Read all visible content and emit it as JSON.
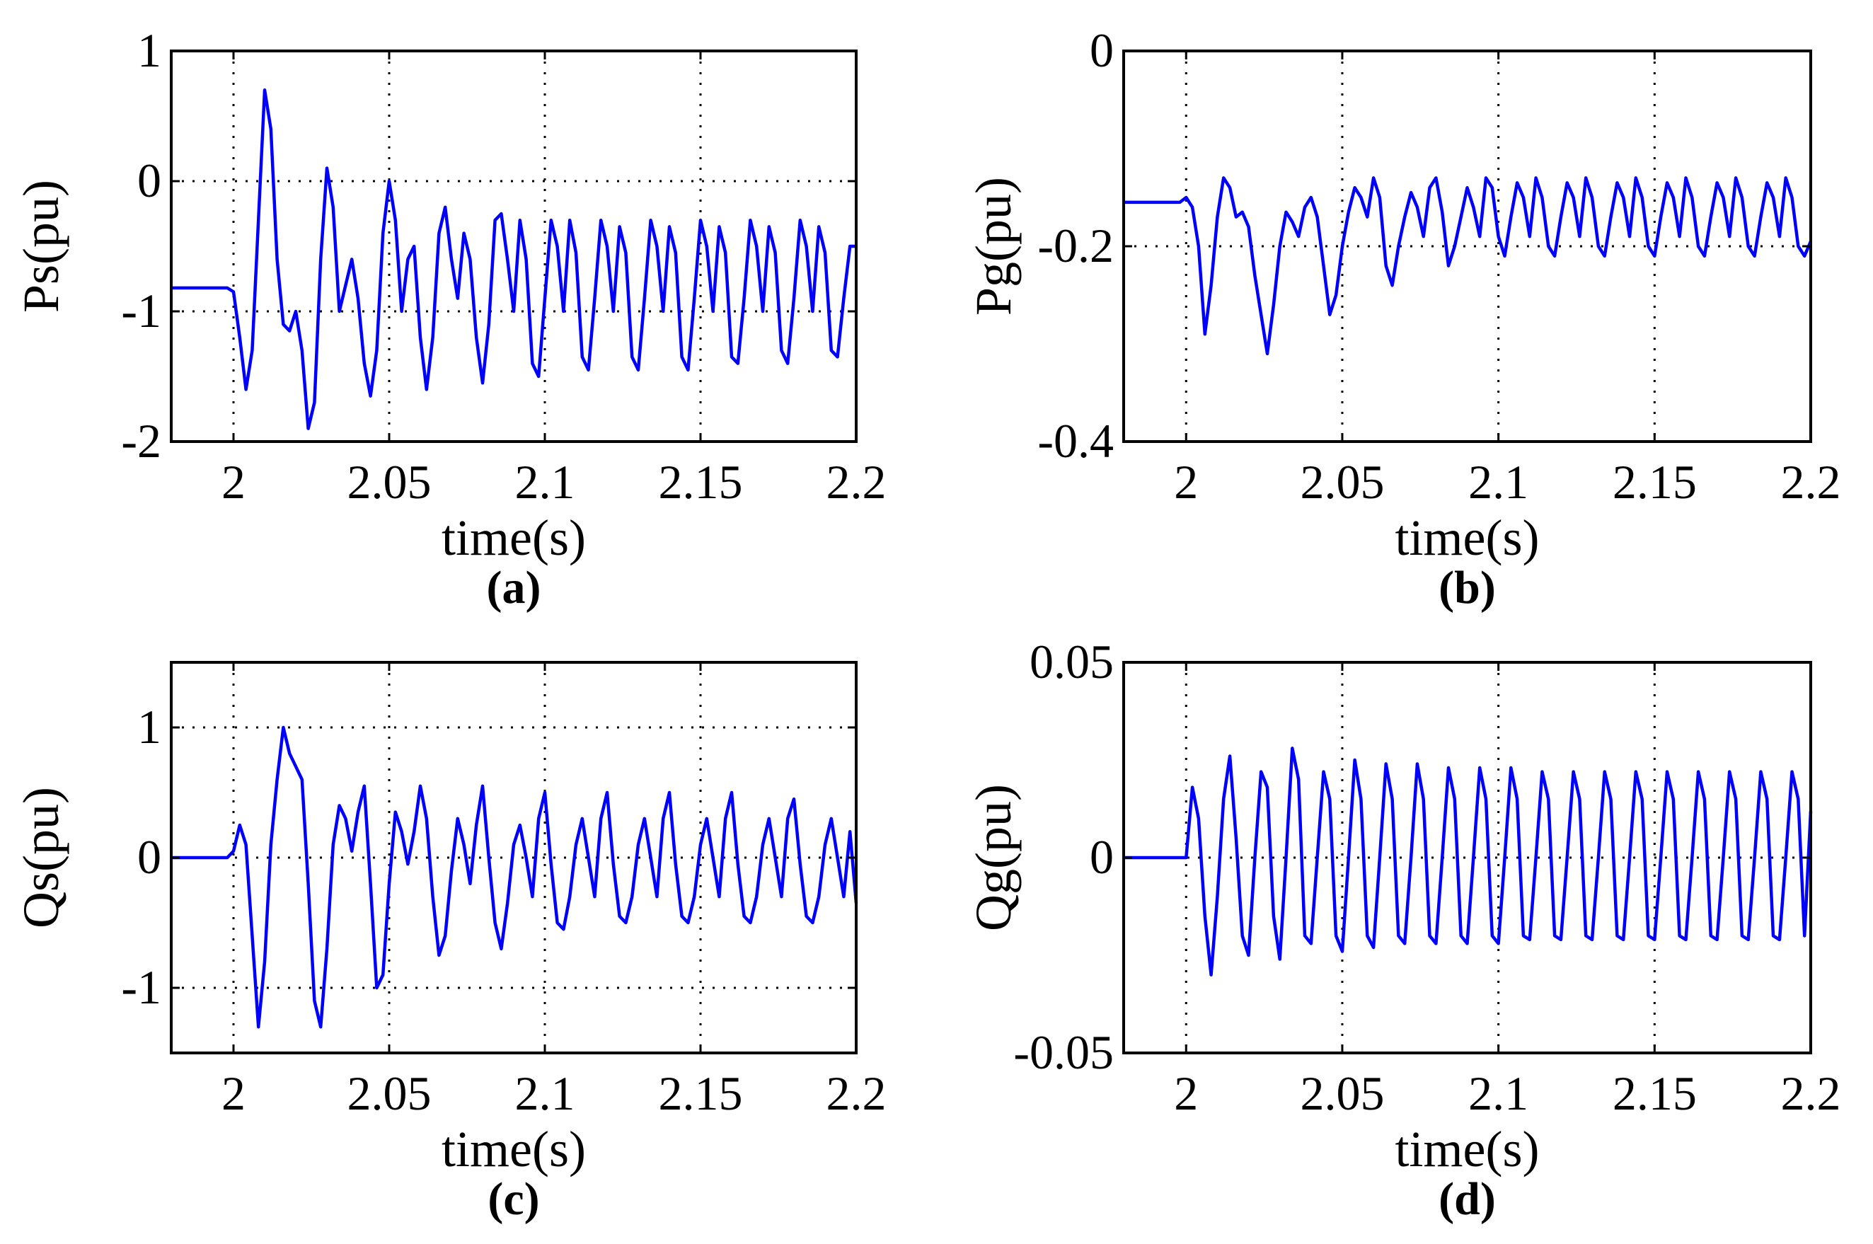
{
  "chart_data": [
    {
      "id": "a",
      "type": "line",
      "caption": "(a)",
      "xlabel": "time(s)",
      "ylabel": "Ps(pu)",
      "xlim": [
        1.98,
        2.2
      ],
      "ylim": [
        -2,
        1
      ],
      "xticks": [
        2,
        2.05,
        2.1,
        2.15,
        2.2
      ],
      "xtick_labels": [
        "2",
        "2.05",
        "2.1",
        "2.15",
        "2.2"
      ],
      "yticks": [
        -2,
        -1,
        0,
        1
      ],
      "ytick_labels": [
        "-2",
        "-1",
        "0",
        "1"
      ],
      "grid": true,
      "series": [
        {
          "name": "Ps",
          "color": "#0000ff",
          "x": [
            1.98,
            1.998,
            2.0,
            2.002,
            2.004,
            2.006,
            2.008,
            2.01,
            2.012,
            2.014,
            2.016,
            2.018,
            2.02,
            2.022,
            2.024,
            2.026,
            2.028,
            2.03,
            2.032,
            2.034,
            2.036,
            2.038,
            2.04,
            2.042,
            2.044,
            2.046,
            2.048,
            2.05,
            2.052,
            2.054,
            2.056,
            2.058,
            2.06,
            2.062,
            2.064,
            2.066,
            2.068,
            2.07,
            2.072,
            2.074,
            2.076,
            2.078,
            2.08,
            2.082,
            2.084,
            2.086,
            2.088,
            2.09,
            2.092,
            2.094,
            2.096,
            2.098,
            2.1,
            2.102,
            2.104,
            2.106,
            2.108,
            2.11,
            2.112,
            2.114,
            2.116,
            2.118,
            2.12,
            2.122,
            2.124,
            2.126,
            2.128,
            2.13,
            2.132,
            2.134,
            2.136,
            2.138,
            2.14,
            2.142,
            2.144,
            2.146,
            2.148,
            2.15,
            2.152,
            2.154,
            2.156,
            2.158,
            2.16,
            2.162,
            2.164,
            2.166,
            2.168,
            2.17,
            2.172,
            2.174,
            2.176,
            2.178,
            2.18,
            2.182,
            2.184,
            2.186,
            2.188,
            2.19,
            2.192,
            2.194,
            2.196,
            2.198,
            2.2
          ],
          "y": [
            -0.82,
            -0.82,
            -0.85,
            -1.2,
            -1.6,
            -1.3,
            -0.3,
            0.7,
            0.4,
            -0.6,
            -1.1,
            -1.15,
            -1.0,
            -1.3,
            -1.9,
            -1.7,
            -0.6,
            0.1,
            -0.2,
            -1.0,
            -0.8,
            -0.6,
            -0.9,
            -1.4,
            -1.65,
            -1.3,
            -0.4,
            0.0,
            -0.3,
            -1.0,
            -0.6,
            -0.5,
            -1.2,
            -1.6,
            -1.2,
            -0.4,
            -0.2,
            -0.6,
            -0.9,
            -0.4,
            -0.6,
            -1.2,
            -1.55,
            -1.1,
            -0.3,
            -0.25,
            -0.6,
            -1.0,
            -0.3,
            -0.6,
            -1.4,
            -1.5,
            -0.9,
            -0.3,
            -0.5,
            -1.0,
            -0.3,
            -0.55,
            -1.35,
            -1.45,
            -0.9,
            -0.3,
            -0.5,
            -1.0,
            -0.35,
            -0.55,
            -1.35,
            -1.45,
            -0.9,
            -0.3,
            -0.5,
            -1.0,
            -0.35,
            -0.55,
            -1.35,
            -1.45,
            -0.9,
            -0.3,
            -0.5,
            -1.0,
            -0.35,
            -0.55,
            -1.35,
            -1.4,
            -0.9,
            -0.3,
            -0.5,
            -1.0,
            -0.35,
            -0.55,
            -1.3,
            -1.4,
            -0.9,
            -0.3,
            -0.5,
            -1.0,
            -0.35,
            -0.55,
            -1.3,
            -1.35,
            -0.9,
            -0.5,
            -0.5
          ]
        }
      ]
    },
    {
      "id": "b",
      "type": "line",
      "caption": "(b)",
      "xlabel": "time(s)",
      "ylabel": "Pg(pu)",
      "xlim": [
        1.98,
        2.2
      ],
      "ylim": [
        -0.4,
        0
      ],
      "xticks": [
        2,
        2.05,
        2.1,
        2.15,
        2.2
      ],
      "xtick_labels": [
        "2",
        "2.05",
        "2.1",
        "2.15",
        "2.2"
      ],
      "yticks": [
        -0.4,
        -0.2,
        0
      ],
      "ytick_labels": [
        "-0.4",
        "-0.2",
        "0"
      ],
      "grid": true,
      "series": [
        {
          "name": "Pg",
          "color": "#0000ff",
          "x": [
            1.98,
            1.998,
            2.0,
            2.002,
            2.004,
            2.006,
            2.008,
            2.01,
            2.012,
            2.014,
            2.016,
            2.018,
            2.02,
            2.022,
            2.024,
            2.026,
            2.028,
            2.03,
            2.032,
            2.034,
            2.036,
            2.038,
            2.04,
            2.042,
            2.044,
            2.046,
            2.048,
            2.05,
            2.052,
            2.054,
            2.056,
            2.058,
            2.06,
            2.062,
            2.064,
            2.066,
            2.068,
            2.07,
            2.072,
            2.074,
            2.076,
            2.078,
            2.08,
            2.082,
            2.084,
            2.086,
            2.088,
            2.09,
            2.092,
            2.094,
            2.096,
            2.098,
            2.1,
            2.102,
            2.104,
            2.106,
            2.108,
            2.11,
            2.112,
            2.114,
            2.116,
            2.118,
            2.12,
            2.122,
            2.124,
            2.126,
            2.128,
            2.13,
            2.132,
            2.134,
            2.136,
            2.138,
            2.14,
            2.142,
            2.144,
            2.146,
            2.148,
            2.15,
            2.152,
            2.154,
            2.156,
            2.158,
            2.16,
            2.162,
            2.164,
            2.166,
            2.168,
            2.17,
            2.172,
            2.174,
            2.176,
            2.178,
            2.18,
            2.182,
            2.184,
            2.186,
            2.188,
            2.19,
            2.192,
            2.194,
            2.196,
            2.198,
            2.2
          ],
          "y": [
            -0.155,
            -0.155,
            -0.15,
            -0.16,
            -0.2,
            -0.29,
            -0.24,
            -0.17,
            -0.13,
            -0.14,
            -0.17,
            -0.165,
            -0.18,
            -0.23,
            -0.27,
            -0.31,
            -0.26,
            -0.2,
            -0.165,
            -0.175,
            -0.19,
            -0.16,
            -0.15,
            -0.17,
            -0.22,
            -0.27,
            -0.25,
            -0.2,
            -0.165,
            -0.14,
            -0.15,
            -0.17,
            -0.13,
            -0.15,
            -0.22,
            -0.24,
            -0.2,
            -0.17,
            -0.145,
            -0.16,
            -0.19,
            -0.14,
            -0.13,
            -0.165,
            -0.22,
            -0.2,
            -0.17,
            -0.14,
            -0.16,
            -0.19,
            -0.13,
            -0.14,
            -0.19,
            -0.21,
            -0.17,
            -0.135,
            -0.15,
            -0.19,
            -0.13,
            -0.15,
            -0.2,
            -0.21,
            -0.17,
            -0.135,
            -0.15,
            -0.19,
            -0.13,
            -0.15,
            -0.2,
            -0.21,
            -0.17,
            -0.135,
            -0.15,
            -0.19,
            -0.13,
            -0.15,
            -0.2,
            -0.21,
            -0.17,
            -0.135,
            -0.15,
            -0.19,
            -0.13,
            -0.15,
            -0.2,
            -0.21,
            -0.17,
            -0.135,
            -0.15,
            -0.19,
            -0.13,
            -0.15,
            -0.2,
            -0.21,
            -0.17,
            -0.135,
            -0.15,
            -0.19,
            -0.13,
            -0.15,
            -0.2,
            -0.21,
            -0.195
          ]
        }
      ]
    },
    {
      "id": "c",
      "type": "line",
      "caption": "(c)",
      "xlabel": "time(s)",
      "ylabel": "Qs(pu)",
      "xlim": [
        1.98,
        2.2
      ],
      "ylim": [
        -1.5,
        1.5
      ],
      "xticks": [
        2,
        2.05,
        2.1,
        2.15,
        2.2
      ],
      "xtick_labels": [
        "2",
        "2.05",
        "2.1",
        "2.15",
        "2.2"
      ],
      "yticks": [
        -1,
        0,
        1
      ],
      "ytick_labels": [
        "-1",
        "0",
        "1"
      ],
      "grid": true,
      "series": [
        {
          "name": "Qs",
          "color": "#0000ff",
          "x": [
            1.98,
            1.998,
            2.0,
            2.002,
            2.004,
            2.006,
            2.008,
            2.01,
            2.012,
            2.014,
            2.016,
            2.018,
            2.02,
            2.022,
            2.024,
            2.026,
            2.028,
            2.03,
            2.032,
            2.034,
            2.036,
            2.038,
            2.04,
            2.042,
            2.044,
            2.046,
            2.048,
            2.05,
            2.052,
            2.054,
            2.056,
            2.058,
            2.06,
            2.062,
            2.064,
            2.066,
            2.068,
            2.07,
            2.072,
            2.074,
            2.076,
            2.078,
            2.08,
            2.082,
            2.084,
            2.086,
            2.088,
            2.09,
            2.092,
            2.094,
            2.096,
            2.098,
            2.1,
            2.102,
            2.104,
            2.106,
            2.108,
            2.11,
            2.112,
            2.114,
            2.116,
            2.118,
            2.12,
            2.122,
            2.124,
            2.126,
            2.128,
            2.13,
            2.132,
            2.134,
            2.136,
            2.138,
            2.14,
            2.142,
            2.144,
            2.146,
            2.148,
            2.15,
            2.152,
            2.154,
            2.156,
            2.158,
            2.16,
            2.162,
            2.164,
            2.166,
            2.168,
            2.17,
            2.172,
            2.174,
            2.176,
            2.178,
            2.18,
            2.182,
            2.184,
            2.186,
            2.188,
            2.19,
            2.192,
            2.194,
            2.196,
            2.198,
            2.2
          ],
          "y": [
            0.0,
            0.0,
            0.05,
            0.25,
            0.1,
            -0.6,
            -1.3,
            -0.8,
            0.1,
            0.6,
            1.0,
            0.8,
            0.7,
            0.6,
            -0.2,
            -1.1,
            -1.3,
            -0.7,
            0.1,
            0.4,
            0.3,
            0.05,
            0.35,
            0.55,
            -0.2,
            -1.0,
            -0.9,
            -0.2,
            0.35,
            0.2,
            -0.05,
            0.2,
            0.55,
            0.3,
            -0.3,
            -0.75,
            -0.6,
            -0.1,
            0.3,
            0.1,
            -0.2,
            0.25,
            0.55,
            0.0,
            -0.5,
            -0.7,
            -0.35,
            0.1,
            0.25,
            0.0,
            -0.3,
            0.3,
            0.5,
            -0.05,
            -0.5,
            -0.55,
            -0.3,
            0.1,
            0.3,
            0.0,
            -0.3,
            0.3,
            0.5,
            -0.05,
            -0.45,
            -0.5,
            -0.3,
            0.1,
            0.3,
            0.0,
            -0.3,
            0.3,
            0.5,
            -0.05,
            -0.45,
            -0.5,
            -0.3,
            0.1,
            0.3,
            0.0,
            -0.3,
            0.3,
            0.5,
            -0.05,
            -0.45,
            -0.5,
            -0.3,
            0.1,
            0.3,
            0.0,
            -0.3,
            0.3,
            0.45,
            -0.05,
            -0.45,
            -0.5,
            -0.3,
            0.1,
            0.3,
            0.0,
            -0.3,
            0.2,
            -0.35
          ]
        }
      ]
    },
    {
      "id": "d",
      "type": "line",
      "caption": "(d)",
      "xlabel": "time(s)",
      "ylabel": "Qg(pu)",
      "xlim": [
        1.98,
        2.2
      ],
      "ylim": [
        -0.05,
        0.05
      ],
      "xticks": [
        2,
        2.05,
        2.1,
        2.15,
        2.2
      ],
      "xtick_labels": [
        "2",
        "2.05",
        "2.1",
        "2.15",
        "2.2"
      ],
      "yticks": [
        -0.05,
        0,
        0.05
      ],
      "ytick_labels": [
        "-0.05",
        "0",
        "0.05"
      ],
      "grid": true,
      "series": [
        {
          "name": "Qg",
          "color": "#0000ff",
          "x": [
            1.98,
            1.998,
            2.0,
            2.002,
            2.004,
            2.006,
            2.008,
            2.01,
            2.012,
            2.014,
            2.016,
            2.018,
            2.02,
            2.022,
            2.024,
            2.026,
            2.028,
            2.03,
            2.032,
            2.034,
            2.036,
            2.038,
            2.04,
            2.042,
            2.044,
            2.046,
            2.048,
            2.05,
            2.052,
            2.054,
            2.056,
            2.058,
            2.06,
            2.062,
            2.064,
            2.066,
            2.068,
            2.07,
            2.072,
            2.074,
            2.076,
            2.078,
            2.08,
            2.082,
            2.084,
            2.086,
            2.088,
            2.09,
            2.092,
            2.094,
            2.096,
            2.098,
            2.1,
            2.102,
            2.104,
            2.106,
            2.108,
            2.11,
            2.112,
            2.114,
            2.116,
            2.118,
            2.12,
            2.122,
            2.124,
            2.126,
            2.128,
            2.13,
            2.132,
            2.134,
            2.136,
            2.138,
            2.14,
            2.142,
            2.144,
            2.146,
            2.148,
            2.15,
            2.152,
            2.154,
            2.156,
            2.158,
            2.16,
            2.162,
            2.164,
            2.166,
            2.168,
            2.17,
            2.172,
            2.174,
            2.176,
            2.178,
            2.18,
            2.182,
            2.184,
            2.186,
            2.188,
            2.19,
            2.192,
            2.194,
            2.196,
            2.198,
            2.2
          ],
          "y": [
            0.0,
            0.0,
            0.0,
            0.018,
            0.01,
            -0.015,
            -0.03,
            -0.01,
            0.015,
            0.026,
            0.005,
            -0.02,
            -0.025,
            0.0,
            0.022,
            0.018,
            -0.015,
            -0.026,
            0.0,
            0.028,
            0.02,
            -0.02,
            -0.022,
            0.0,
            0.022,
            0.015,
            -0.02,
            -0.024,
            0.0,
            0.025,
            0.015,
            -0.02,
            -0.023,
            0.0,
            0.024,
            0.015,
            -0.02,
            -0.022,
            0.0,
            0.024,
            0.015,
            -0.02,
            -0.022,
            0.0,
            0.023,
            0.015,
            -0.02,
            -0.022,
            0.0,
            0.023,
            0.015,
            -0.02,
            -0.022,
            0.0,
            0.023,
            0.015,
            -0.02,
            -0.021,
            0.0,
            0.022,
            0.015,
            -0.02,
            -0.021,
            0.0,
            0.022,
            0.015,
            -0.02,
            -0.021,
            0.0,
            0.022,
            0.015,
            -0.02,
            -0.021,
            0.0,
            0.022,
            0.015,
            -0.02,
            -0.021,
            0.0,
            0.022,
            0.015,
            -0.02,
            -0.021,
            0.0,
            0.022,
            0.015,
            -0.02,
            -0.021,
            0.0,
            0.022,
            0.015,
            -0.02,
            -0.021,
            0.0,
            0.022,
            0.015,
            -0.02,
            -0.021,
            0.0,
            0.022,
            0.015,
            -0.02,
            0.012
          ]
        }
      ]
    }
  ]
}
